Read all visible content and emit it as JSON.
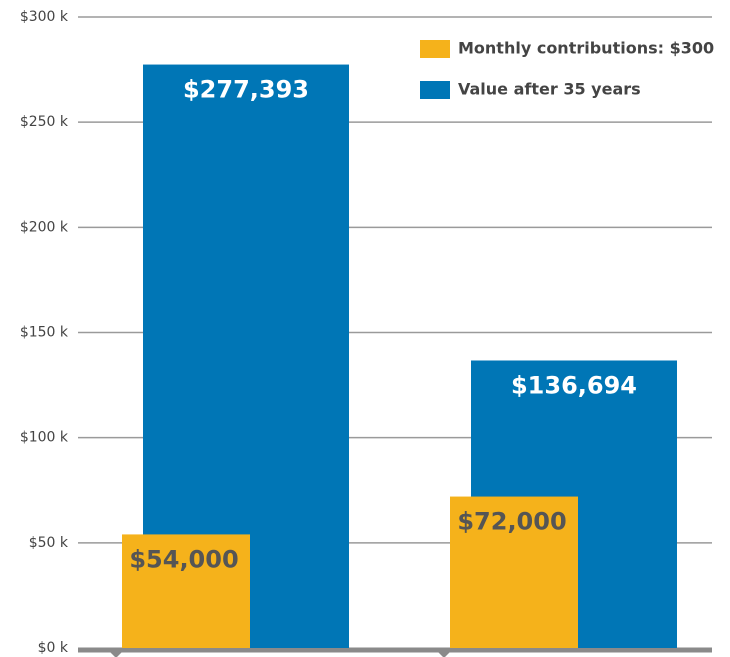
{
  "chart_data": {
    "type": "bar",
    "categories": [
      null,
      null
    ],
    "series": [
      {
        "name": "Monthly contributions: $300",
        "color": "#f5b21b",
        "values": [
          54000,
          72000
        ],
        "value_labels": [
          "$54,000",
          "$72,000"
        ]
      },
      {
        "name": "Value after 35 years",
        "color": "#0076b6",
        "values": [
          277393,
          136694
        ],
        "value_labels": [
          "$277,393",
          "$136,694"
        ]
      }
    ],
    "ylim": [
      0,
      300000
    ],
    "yticks": [
      {
        "value": 0,
        "label": "$0 k"
      },
      {
        "value": 50000,
        "label": "$50 k"
      },
      {
        "value": 100000,
        "label": "$100 k"
      },
      {
        "value": 150000,
        "label": "$150 k"
      },
      {
        "value": 200000,
        "label": "$200 k"
      },
      {
        "value": 250000,
        "label": "$250 k"
      },
      {
        "value": 300000,
        "label": "$300 k"
      }
    ],
    "grid": true,
    "legend": "top-right"
  }
}
